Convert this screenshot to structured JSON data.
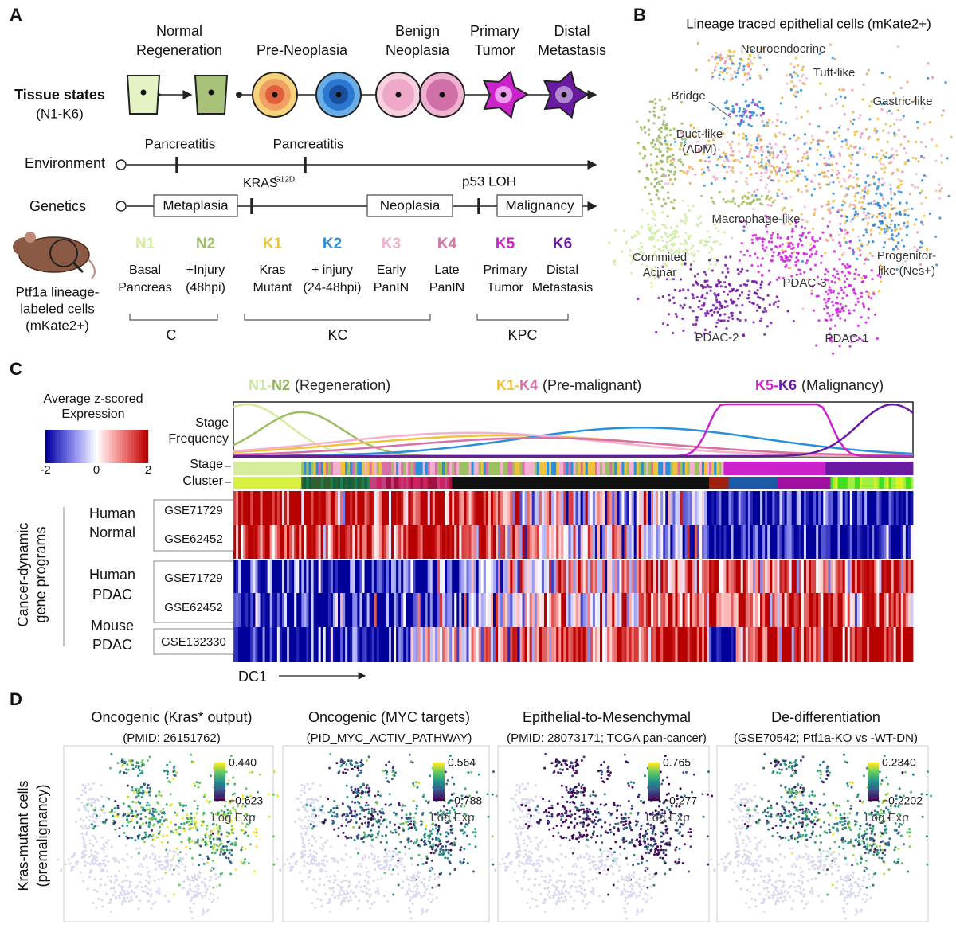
{
  "panel_a": {
    "label": "A",
    "states": [
      [
        "Normal",
        "Regeneration"
      ],
      [
        "Pre-Neoplasia"
      ],
      [
        "Benign",
        "Neoplasia"
      ],
      [
        "Primary",
        "Tumor"
      ],
      [
        "Distal",
        "Metastasis"
      ]
    ],
    "tissue_states": [
      "Tissue states",
      "(N1-K6)"
    ],
    "environment": "Environment",
    "pancreatitis": [
      "Pancreatitis",
      "Pancreatitis"
    ],
    "genetics": "Genetics",
    "kras": "KRAS",
    "kras_sup": "G12D",
    "p53": "p53 LOH",
    "phases": [
      "Metaplasia",
      "Neoplasia",
      "Malignancy"
    ],
    "mouse": [
      "Ptf1a lineage-",
      "labeled cells",
      "(mKate2+)"
    ],
    "stages": [
      {
        "code": "N1",
        "desc": [
          "Basal",
          "Pancreas"
        ]
      },
      {
        "code": "N2",
        "desc": [
          "+Injury",
          "(48hpi)"
        ]
      },
      {
        "code": "K1",
        "desc": [
          "Kras",
          "Mutant"
        ]
      },
      {
        "code": "K2",
        "desc": [
          "+ injury",
          "(24-48hpi)"
        ]
      },
      {
        "code": "K3",
        "desc": [
          "Early",
          "PanIN"
        ]
      },
      {
        "code": "K4",
        "desc": [
          "Late",
          "PanIN"
        ]
      },
      {
        "code": "K5",
        "desc": [
          "Primary",
          "Tumor"
        ]
      },
      {
        "code": "K6",
        "desc": [
          "Distal",
          "Metastasis"
        ]
      }
    ],
    "groups": [
      "C",
      "KC",
      "KPC"
    ]
  },
  "panel_b": {
    "label": "B",
    "title": "Lineage traced epithelial cells (mKate2+)",
    "clusters": [
      [
        "Neuroendocrine"
      ],
      [
        "Tuft-like"
      ],
      [
        "Bridge"
      ],
      [
        "Gastric-like"
      ],
      [
        "Duct-like",
        "(ADM)"
      ],
      [
        "Macrophage-like"
      ],
      [
        "Commited",
        "Acinar"
      ],
      [
        "Progenitor-",
        "like (Nes+)"
      ],
      [
        "PDAC-3"
      ],
      [
        "PDAC-2"
      ],
      [
        "PDAC-1"
      ]
    ]
  },
  "panel_c": {
    "label": "C",
    "colorbar_title": [
      "Average z-scored",
      "Expression"
    ],
    "colorbar_ticks": [
      "-2",
      "0",
      "2"
    ],
    "headers": [
      {
        "start": "N1-",
        "end": "N2",
        "desc": "(Regeneration)"
      },
      {
        "start": "K1-",
        "end": "K4",
        "desc": "(Pre-malignant)"
      },
      {
        "start": "K5-",
        "end": "K6",
        "desc": "(Malignancy)"
      }
    ],
    "stage_frequency": [
      "Stage",
      "Frequency"
    ],
    "stage_row": "Stage",
    "cluster_row": "Cluster",
    "ylabel": [
      "Cancer-dynamic",
      "gene programs"
    ],
    "groups": [
      {
        "name": [
          "Human",
          "Normal"
        ],
        "datasets": [
          "GSE71729",
          "GSE62452"
        ]
      },
      {
        "name": [
          "Human",
          "PDAC"
        ],
        "datasets": [
          "GSE71729",
          "GSE62452"
        ]
      },
      {
        "name": [
          "Mouse",
          "PDAC"
        ],
        "datasets": [
          "GSE132330"
        ]
      }
    ],
    "xlabel": "DC1"
  },
  "panel_d": {
    "label": "D",
    "ylabel": [
      "Kras-mutant cells",
      "(premalignancy)"
    ],
    "plots": [
      {
        "title": "Oncogenic (Kras* output)",
        "subtitle": "(PMID: 26151762)",
        "max": "0.440",
        "min": "−0.623",
        "unit": "Log Exp"
      },
      {
        "title": "Oncogenic (MYC targets)",
        "subtitle": "(PID_MYC_ACTIV_PATHWAY)",
        "max": "0.564",
        "min": "−0.788",
        "unit": "Log Exp"
      },
      {
        "title": "Epithelial-to-Mesenchymal",
        "subtitle": "(PMID: 28073171; TCGA pan-cancer)",
        "max": "0.765",
        "min": "−0.277",
        "unit": "Log Exp"
      },
      {
        "title": "De-differentiation",
        "subtitle": "(GSE70542; Ptf1a-KO vs -WT-DN)",
        "max": "0.2340",
        "min": "−0.2202",
        "unit": "Log Exp"
      }
    ]
  }
}
